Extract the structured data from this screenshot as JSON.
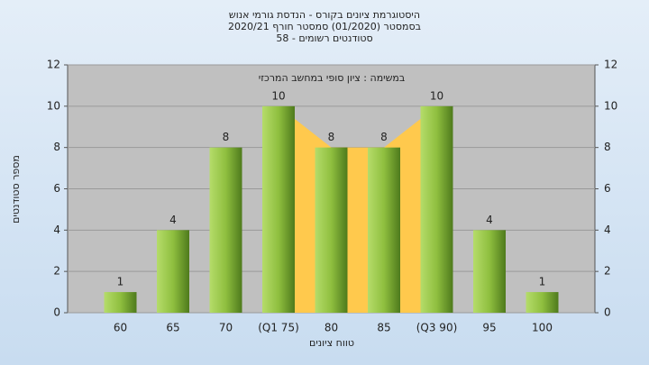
{
  "chart_data": {
    "type": "bar",
    "title": "היסטוגרמת ציונים בקורס - הנדסת גורמי אנוש",
    "subtitle": "בסמסטר  (01/2020)  סמסטר חורף 2020/21",
    "subtitle2": "סטודנטים רשומים - 58",
    "annotation": "במשימה : ציון סופי במחשב המרכזי",
    "ylabel": "מספר סטודנטים",
    "xlabel": "טווח ציונים",
    "categories": [
      "60",
      "65",
      "70",
      "(Q1 75)",
      "80",
      "85",
      "(Q3 90)",
      "95",
      "100"
    ],
    "values": [
      1,
      4,
      8,
      10,
      8,
      8,
      10,
      4,
      1
    ],
    "color": "#8fbf3f",
    "highlight_color": "#ffc94d",
    "ylim": [
      0,
      12
    ],
    "yticks": [
      0,
      2,
      4,
      6,
      8,
      10,
      12
    ],
    "y2lim": [
      0,
      12
    ],
    "y2ticks": [
      0,
      2,
      4,
      6,
      8,
      10,
      12
    ],
    "grid": true
  }
}
